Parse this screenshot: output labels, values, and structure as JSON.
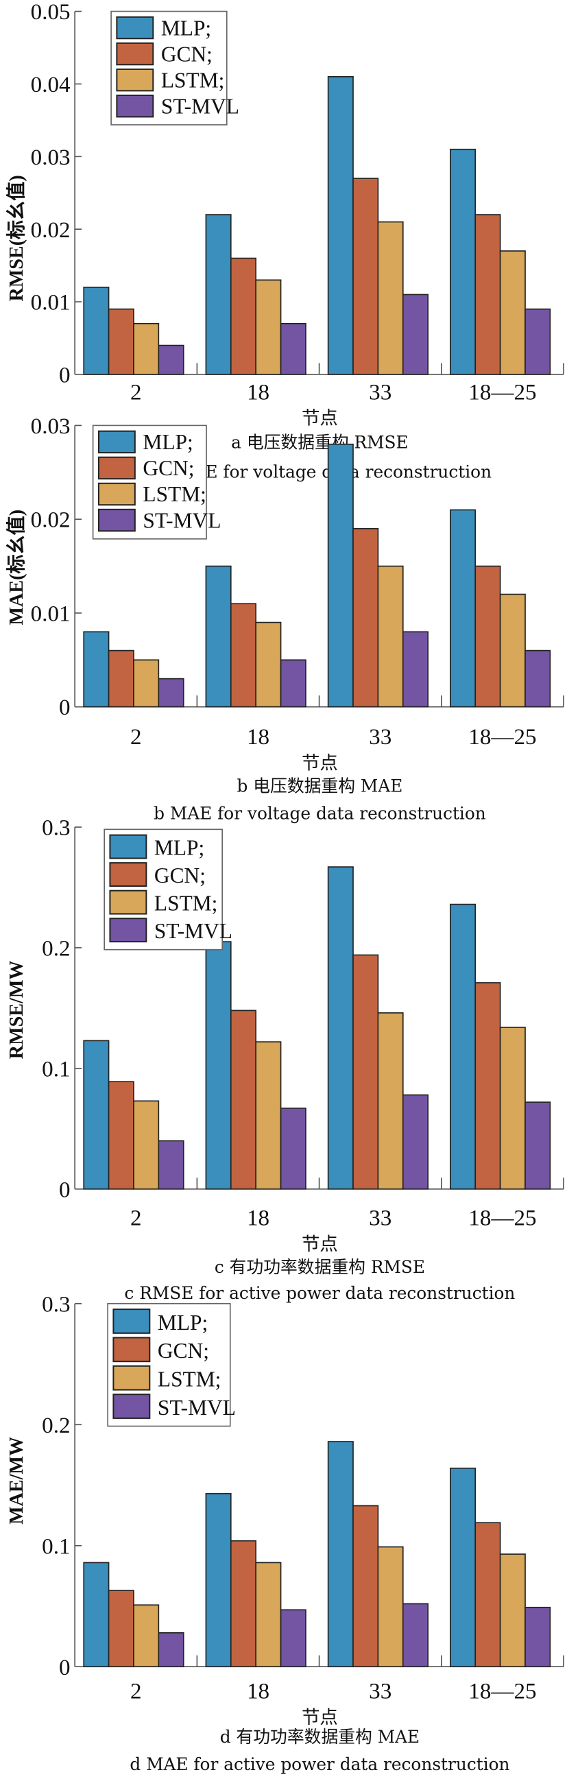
{
  "colors": {
    "MLP": "#3a8fbd",
    "GCN": "#c26441",
    "LSTM": "#d9a75a",
    "ST-MVL": "#7355a3"
  },
  "chart_data": [
    {
      "type": "bar",
      "title": "",
      "caption_cn": "a  电压数据重构 RMSE",
      "caption_en": "a  RMSE for voltage data reconstruction",
      "xlabel": "节点",
      "ylabel": "RMSE(标幺值)",
      "categories": [
        "2",
        "18",
        "33",
        "18—25"
      ],
      "ylim": [
        0,
        0.05
      ],
      "yticks": [
        0,
        0.01,
        0.02,
        0.03,
        0.04,
        0.05
      ],
      "ytick_labels": [
        "0",
        "0.01",
        "0.02",
        "0.03",
        "0.04",
        "0.05"
      ],
      "legend": [
        "MLP;",
        "GCN;",
        "LSTM;",
        "ST-MVL"
      ],
      "legend_position": "top-left",
      "series": [
        {
          "name": "MLP",
          "values": [
            0.012,
            0.022,
            0.041,
            0.031
          ]
        },
        {
          "name": "GCN",
          "values": [
            0.009,
            0.016,
            0.027,
            0.022
          ]
        },
        {
          "name": "LSTM",
          "values": [
            0.007,
            0.013,
            0.021,
            0.017
          ]
        },
        {
          "name": "ST-MVL",
          "values": [
            0.004,
            0.007,
            0.011,
            0.009
          ]
        }
      ]
    },
    {
      "type": "bar",
      "title": "",
      "caption_cn": "b  电压数据重构 MAE",
      "caption_en": "b  MAE for voltage data reconstruction",
      "xlabel": "节点",
      "ylabel": "MAE(标幺值)",
      "categories": [
        "2",
        "18",
        "33",
        "18—25"
      ],
      "ylim": [
        0,
        0.03
      ],
      "yticks": [
        0,
        0.01,
        0.02,
        0.03
      ],
      "ytick_labels": [
        "0",
        "0.01",
        "0.02",
        "0.03"
      ],
      "legend": [
        "MLP;",
        "GCN;",
        "LSTM;",
        "ST-MVL"
      ],
      "legend_position": "top-left",
      "series": [
        {
          "name": "MLP",
          "values": [
            0.008,
            0.015,
            0.028,
            0.021
          ]
        },
        {
          "name": "GCN",
          "values": [
            0.006,
            0.011,
            0.019,
            0.015
          ]
        },
        {
          "name": "LSTM",
          "values": [
            0.005,
            0.009,
            0.015,
            0.012
          ]
        },
        {
          "name": "ST-MVL",
          "values": [
            0.003,
            0.005,
            0.008,
            0.006
          ]
        }
      ]
    },
    {
      "type": "bar",
      "title": "",
      "caption_cn": "c  有功功率数据重构 RMSE",
      "caption_en": "c  RMSE for active power data reconstruction",
      "xlabel": "节点",
      "ylabel": "RMSE/MW",
      "categories": [
        "2",
        "18",
        "33",
        "18—25"
      ],
      "ylim": [
        0,
        0.3
      ],
      "yticks": [
        0,
        0.1,
        0.2,
        0.3
      ],
      "ytick_labels": [
        "0",
        "0.1",
        "0.2",
        "0.3"
      ],
      "legend": [
        "MLP;",
        "GCN;",
        "LSTM;",
        "ST-MVL"
      ],
      "legend_position": "top-left",
      "series": [
        {
          "name": "MLP",
          "values": [
            0.123,
            0.205,
            0.267,
            0.236
          ]
        },
        {
          "name": "GCN",
          "values": [
            0.089,
            0.148,
            0.194,
            0.171
          ]
        },
        {
          "name": "LSTM",
          "values": [
            0.073,
            0.122,
            0.146,
            0.134
          ]
        },
        {
          "name": "ST-MVL",
          "values": [
            0.04,
            0.067,
            0.078,
            0.072
          ]
        }
      ]
    },
    {
      "type": "bar",
      "title": "",
      "caption_cn": "d  有功功率数据重构 MAE",
      "caption_en": "d  MAE for active power data reconstruction",
      "xlabel": "节点",
      "ylabel": "MAE/MW",
      "categories": [
        "2",
        "18",
        "33",
        "18—25"
      ],
      "ylim": [
        0,
        0.3
      ],
      "yticks": [
        0,
        0.1,
        0.2,
        0.3
      ],
      "ytick_labels": [
        "0",
        "0.1",
        "0.2",
        "0.3"
      ],
      "legend": [
        "MLP;",
        "GCN;",
        "LSTM;",
        "ST-MVL"
      ],
      "legend_position": "top-left",
      "series": [
        {
          "name": "MLP",
          "values": [
            0.086,
            0.143,
            0.186,
            0.164
          ]
        },
        {
          "name": "GCN",
          "values": [
            0.063,
            0.104,
            0.133,
            0.119
          ]
        },
        {
          "name": "LSTM",
          "values": [
            0.051,
            0.086,
            0.099,
            0.093
          ]
        },
        {
          "name": "ST-MVL",
          "values": [
            0.028,
            0.047,
            0.052,
            0.049
          ]
        }
      ]
    }
  ]
}
